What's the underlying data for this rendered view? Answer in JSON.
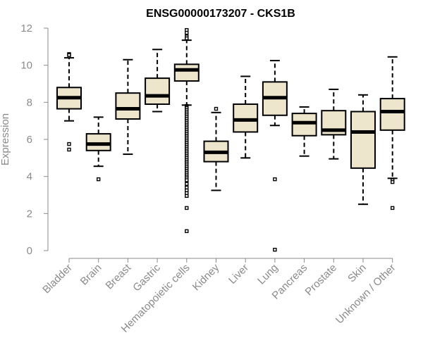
{
  "chart_data": {
    "type": "boxplot",
    "title": "ENSG00000173207 - CKS1B",
    "xlabel": "",
    "ylabel": "Expression",
    "ylim": [
      0,
      12
    ],
    "y_ticks": [
      0,
      2,
      4,
      6,
      8,
      10,
      12
    ],
    "grid": false,
    "legend": "none",
    "colors": {
      "box_fill": "#ede6cc",
      "box_stroke": "#000000",
      "median": "#000000",
      "axis": "#8a8a8a",
      "text": "#8a8a8a",
      "title": "#000000"
    },
    "categories": [
      "Bladder",
      "Brain",
      "Breast",
      "Gastric",
      "Hematopoietic cells",
      "Kidney",
      "Liver",
      "Lung",
      "Pancreas",
      "Prostate",
      "Skin",
      "Unknown / Other"
    ],
    "boxes": [
      {
        "category": "Bladder",
        "whisker_low": 7.0,
        "q1": 7.65,
        "median": 8.25,
        "q3": 8.8,
        "whisker_high": 10.4,
        "outliers": [
          10.6,
          10.55,
          5.75,
          5.45
        ]
      },
      {
        "category": "Brain",
        "whisker_low": 4.55,
        "q1": 5.4,
        "median": 5.75,
        "q3": 6.3,
        "whisker_high": 7.2,
        "outliers": [
          3.85
        ]
      },
      {
        "category": "Breast",
        "whisker_low": 5.2,
        "q1": 7.1,
        "median": 7.65,
        "q3": 8.5,
        "whisker_high": 10.3,
        "outliers": []
      },
      {
        "category": "Gastric",
        "whisker_low": 7.5,
        "q1": 7.9,
        "median": 8.35,
        "q3": 9.3,
        "whisker_high": 10.85,
        "outliers": []
      },
      {
        "category": "Hematopoietic cells",
        "whisker_low": 7.85,
        "q1": 9.15,
        "median": 9.75,
        "q3": 10.05,
        "whisker_high": 11.35,
        "outliers": [
          11.9,
          11.75,
          11.55,
          11.45,
          7.8,
          7.75,
          7.7,
          7.6,
          7.5,
          7.4,
          7.3,
          7.2,
          7.1,
          7.0,
          6.9,
          6.8,
          6.7,
          6.6,
          6.5,
          6.4,
          6.3,
          6.2,
          6.1,
          6.0,
          5.9,
          5.8,
          5.7,
          5.6,
          5.5,
          5.4,
          5.3,
          5.2,
          5.1,
          5.0,
          4.9,
          4.8,
          4.7,
          4.6,
          4.5,
          4.4,
          4.3,
          4.2,
          4.1,
          4.0,
          3.9,
          3.8,
          3.6,
          3.4,
          3.25,
          3.1,
          2.95,
          2.3,
          1.05
        ]
      },
      {
        "category": "Kidney",
        "whisker_low": 3.25,
        "q1": 4.8,
        "median": 5.3,
        "q3": 5.9,
        "whisker_high": 7.45,
        "outliers": [
          7.65
        ]
      },
      {
        "category": "Liver",
        "whisker_low": 5.0,
        "q1": 6.4,
        "median": 7.05,
        "q3": 7.9,
        "whisker_high": 9.4,
        "outliers": []
      },
      {
        "category": "Lung",
        "whisker_low": 6.75,
        "q1": 7.3,
        "median": 8.25,
        "q3": 9.1,
        "whisker_high": 10.25,
        "outliers": [
          3.85,
          0.05
        ]
      },
      {
        "category": "Pancreas",
        "whisker_low": 5.1,
        "q1": 6.2,
        "median": 6.9,
        "q3": 7.4,
        "whisker_high": 7.75,
        "outliers": []
      },
      {
        "category": "Prostate",
        "whisker_low": 4.95,
        "q1": 6.25,
        "median": 6.5,
        "q3": 7.55,
        "whisker_high": 8.7,
        "outliers": []
      },
      {
        "category": "Skin",
        "whisker_low": 2.5,
        "q1": 4.45,
        "median": 6.4,
        "q3": 7.5,
        "whisker_high": 8.4,
        "outliers": []
      },
      {
        "category": "Unknown / Other",
        "whisker_low": 3.9,
        "q1": 6.5,
        "median": 7.5,
        "q3": 8.2,
        "whisker_high": 10.45,
        "outliers": [
          3.8,
          3.7,
          2.3
        ]
      }
    ]
  }
}
